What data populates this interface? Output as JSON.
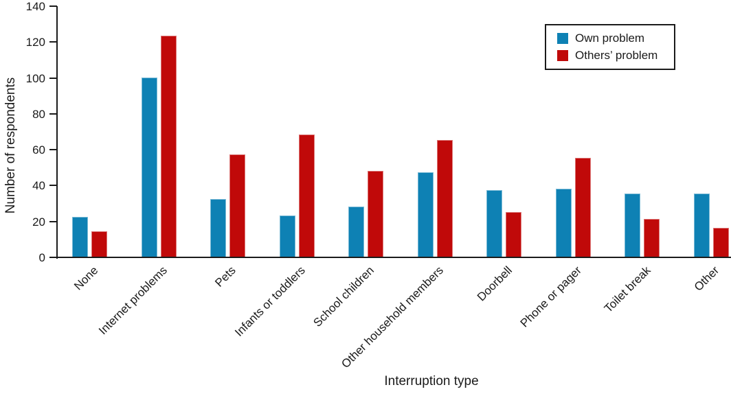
{
  "chart_data": {
    "type": "bar",
    "title": "",
    "xlabel": "Interruption type",
    "ylabel": "Number of respondents",
    "categories": [
      "None",
      "Internet problems",
      "Pets",
      "Infants or toddlers",
      "School children",
      "Other household members",
      "Doorbell",
      "Phone or pager",
      "Toilet break",
      "Other"
    ],
    "series": [
      {
        "name": "Own problem",
        "color": "#0e81b4",
        "values": [
          22,
          100,
          32,
          23,
          28,
          47,
          37,
          38,
          35,
          35
        ]
      },
      {
        "name": "Others’ problem",
        "color": "#c00909",
        "values": [
          14,
          123,
          57,
          68,
          48,
          65,
          25,
          55,
          21,
          16
        ]
      }
    ],
    "ylim": [
      0,
      140
    ],
    "ytick_step": 20,
    "yticks": [
      0,
      20,
      40,
      60,
      80,
      100,
      120,
      140
    ],
    "grid": false,
    "legend_position": "top-right",
    "axis_color": "#1a1a1a",
    "background_color": "#ffffff"
  }
}
